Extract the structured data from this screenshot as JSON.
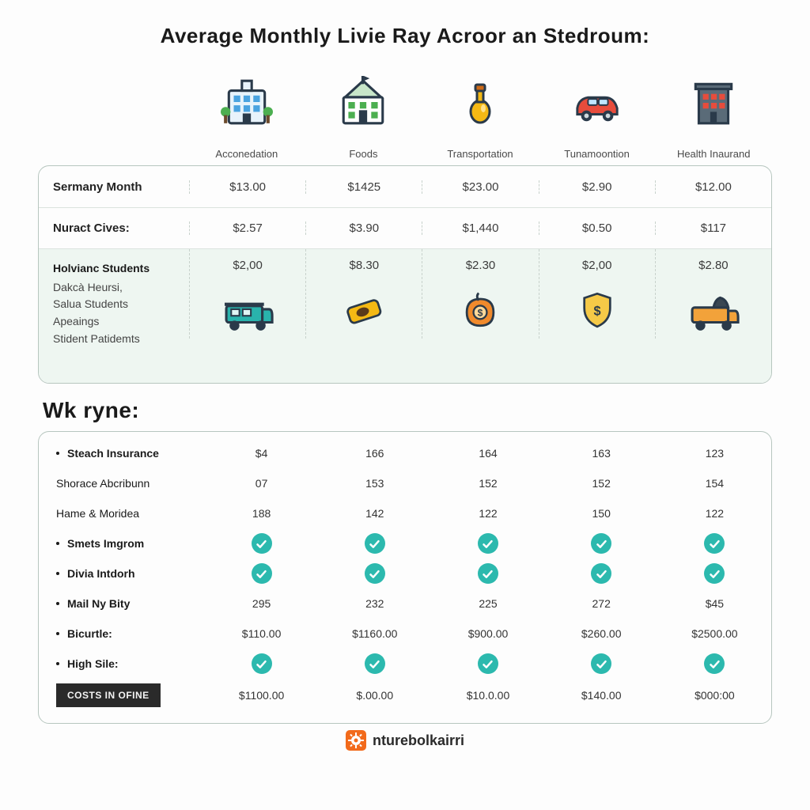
{
  "title": "Average Monthly Livie Ray Acroor an Stedroum:",
  "palette": {
    "teal": "#2cb9ae",
    "border": "#b7c6bf",
    "band": "#eef6f1",
    "orange": "#f26a1b",
    "btn": "#2a2a2a"
  },
  "top": {
    "columns": [
      "Acconedation",
      "Foods",
      "Transportation",
      "Tunamoontion",
      "Health Inaurand"
    ],
    "rows": [
      {
        "label": "Sermany Month",
        "values": [
          "$13.00",
          "$1425",
          "$23.00",
          "$2.90",
          "$12.00"
        ]
      },
      {
        "label": "Nuract Cives:",
        "values": [
          "$2.57",
          "$3.90",
          "$1,440",
          "$0.50",
          "$117"
        ]
      }
    ],
    "band": {
      "labels": [
        "Holvianc Students",
        "Dakcà Heursi,",
        "Salua Students",
        "Apeaings",
        "Stident Patidemts"
      ],
      "values": [
        "$2,00",
        "$8.30",
        "$2.30",
        "$2,00",
        "$2.80"
      ],
      "icons": [
        "van-teal",
        "ticket",
        "pumpkin-dollar",
        "shield-dollar",
        "van-orange"
      ]
    }
  },
  "section2_title": "Wk ryne:",
  "bottom": {
    "rows": [
      {
        "label": "Steach Insurance",
        "bold": true,
        "bullet": true,
        "type": "num",
        "values": [
          "$4",
          "166",
          "164",
          "163",
          "123"
        ]
      },
      {
        "label": "Shorace Abcribunn",
        "bold": false,
        "bullet": false,
        "type": "num",
        "values": [
          "07",
          "153",
          "152",
          "152",
          "154"
        ]
      },
      {
        "label": "Hame & Moridea",
        "bold": false,
        "bullet": false,
        "type": "num",
        "values": [
          "188",
          "142",
          "122",
          "150",
          "122"
        ]
      },
      {
        "label": "Smets Imgrom",
        "bold": true,
        "bullet": true,
        "type": "check"
      },
      {
        "label": "Divia Intdorh",
        "bold": true,
        "bullet": true,
        "type": "check"
      },
      {
        "label": "Mail Ny Bity",
        "bold": true,
        "bullet": true,
        "type": "num",
        "values": [
          "295",
          "232",
          "225",
          "272",
          "$45"
        ]
      },
      {
        "label": "Bicurtle:",
        "bold": true,
        "bullet": true,
        "type": "num",
        "values": [
          "$110.00",
          "$1160.00",
          "$900.00",
          "$260.00",
          "$2500.00"
        ]
      },
      {
        "label": "High Sile:",
        "bold": true,
        "bullet": true,
        "type": "check"
      }
    ],
    "footer_button": "COSTS IN OFINE",
    "footer_values": [
      "$1100.00",
      "$.00.00",
      "$10.0.00",
      "$140.00",
      "$000:00"
    ]
  },
  "brand": "nturebolkairri"
}
